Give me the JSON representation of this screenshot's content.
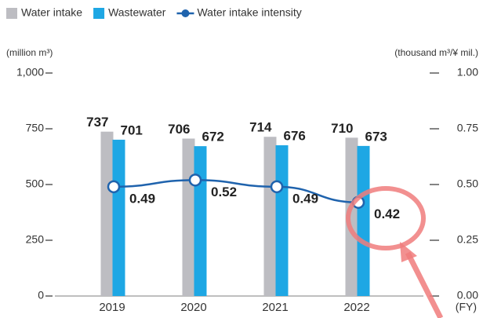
{
  "chart_data": {
    "type": "bar_line",
    "categories": [
      "2019",
      "2020",
      "2021",
      "2022"
    ],
    "series": [
      {
        "name": "Water intake",
        "color": "#bdbdc2",
        "values": [
          737,
          706,
          714,
          710
        ]
      },
      {
        "name": "Wastewater",
        "color": "#1ea7e4",
        "values": [
          701,
          672,
          676,
          673
        ]
      },
      {
        "name": "Water intake intensity",
        "color": "#1f63ad",
        "axis": "y2",
        "values": [
          0.49,
          0.52,
          0.49,
          0.42
        ]
      }
    ],
    "y_label": "(million m³)",
    "y2_label": "(thousand m³/¥ mil.)",
    "x_label": "(FY)",
    "ylim": [
      0,
      1000
    ],
    "yticks": [
      0,
      250,
      500,
      750,
      {
        "value": 1000,
        "label": "1,000"
      }
    ],
    "y2lim": [
      0,
      1
    ],
    "y2ticks": [
      {
        "value": 0,
        "label": "0.00"
      },
      {
        "value": 0.25,
        "label": "0.25"
      },
      {
        "value": 0.5,
        "label": "0.50"
      },
      {
        "value": 0.75,
        "label": "0.75"
      },
      {
        "value": 1,
        "label": "1.00"
      }
    ],
    "legend": "top-left"
  }
}
